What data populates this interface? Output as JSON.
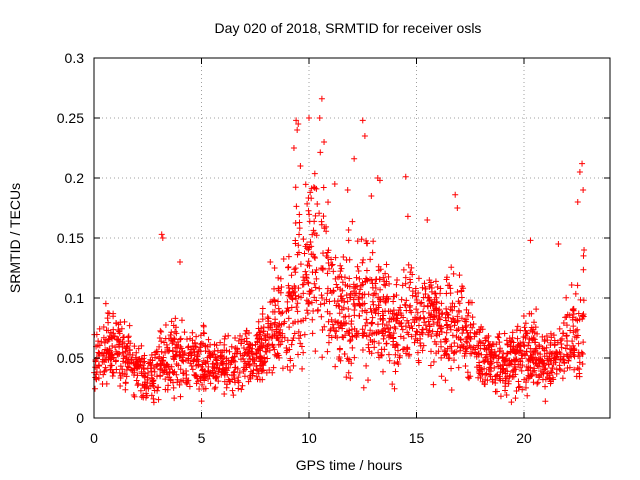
{
  "chart_data": {
    "type": "scatter",
    "title": "Day 020 of 2018, SRMTID for receiver osls",
    "xlabel": "GPS time / hours",
    "ylabel": "SRMTID / TECUs",
    "xlim": [
      0,
      24
    ],
    "ylim": [
      0,
      0.3
    ],
    "x_ticks": [
      "0",
      "5",
      "10",
      "15",
      "20"
    ],
    "y_ticks": [
      "0",
      "0.05",
      "0.1",
      "0.15",
      "0.2",
      "0.25",
      "0.3"
    ],
    "grid": true,
    "marker": "plus",
    "color": "#ff0000",
    "x_extent_hours": [
      0,
      22.8
    ],
    "envelope": [
      [
        0.0,
        0.05,
        0.022
      ],
      [
        0.5,
        0.058,
        0.022
      ],
      [
        1.0,
        0.06,
        0.022
      ],
      [
        1.5,
        0.052,
        0.02
      ],
      [
        2.0,
        0.04,
        0.015
      ],
      [
        2.5,
        0.035,
        0.012
      ],
      [
        3.0,
        0.045,
        0.02
      ],
      [
        3.5,
        0.05,
        0.02
      ],
      [
        4.0,
        0.05,
        0.022
      ],
      [
        4.5,
        0.048,
        0.018
      ],
      [
        5.0,
        0.047,
        0.02
      ],
      [
        5.5,
        0.045,
        0.018
      ],
      [
        6.0,
        0.045,
        0.015
      ],
      [
        6.5,
        0.045,
        0.015
      ],
      [
        7.0,
        0.05,
        0.015
      ],
      [
        7.5,
        0.052,
        0.015
      ],
      [
        8.0,
        0.06,
        0.02
      ],
      [
        8.5,
        0.075,
        0.028
      ],
      [
        9.0,
        0.085,
        0.035
      ],
      [
        9.5,
        0.11,
        0.05
      ],
      [
        10.0,
        0.13,
        0.055
      ],
      [
        10.5,
        0.13,
        0.055
      ],
      [
        11.0,
        0.1,
        0.04
      ],
      [
        11.5,
        0.085,
        0.035
      ],
      [
        12.0,
        0.09,
        0.04
      ],
      [
        12.5,
        0.1,
        0.045
      ],
      [
        13.0,
        0.1,
        0.04
      ],
      [
        13.5,
        0.085,
        0.03
      ],
      [
        14.0,
        0.07,
        0.025
      ],
      [
        14.5,
        0.08,
        0.03
      ],
      [
        15.0,
        0.08,
        0.03
      ],
      [
        15.5,
        0.085,
        0.03
      ],
      [
        16.0,
        0.08,
        0.03
      ],
      [
        16.5,
        0.075,
        0.03
      ],
      [
        17.0,
        0.08,
        0.03
      ],
      [
        17.5,
        0.065,
        0.025
      ],
      [
        18.0,
        0.055,
        0.02
      ],
      [
        18.5,
        0.05,
        0.018
      ],
      [
        19.0,
        0.048,
        0.02
      ],
      [
        19.5,
        0.05,
        0.02
      ],
      [
        20.0,
        0.05,
        0.022
      ],
      [
        20.5,
        0.055,
        0.022
      ],
      [
        21.0,
        0.045,
        0.018
      ],
      [
        21.5,
        0.055,
        0.02
      ],
      [
        22.0,
        0.06,
        0.025
      ],
      [
        22.5,
        0.07,
        0.03
      ],
      [
        22.8,
        0.08,
        0.035
      ]
    ],
    "highlights": [
      [
        3.15,
        0.153
      ],
      [
        3.2,
        0.15
      ],
      [
        4.0,
        0.13
      ],
      [
        9.4,
        0.248
      ],
      [
        9.5,
        0.245
      ],
      [
        9.45,
        0.24
      ],
      [
        9.3,
        0.225
      ],
      [
        9.6,
        0.21
      ],
      [
        10.0,
        0.25
      ],
      [
        10.6,
        0.266
      ],
      [
        10.5,
        0.25
      ],
      [
        10.7,
        0.23
      ],
      [
        12.5,
        0.248
      ],
      [
        12.6,
        0.235
      ],
      [
        12.1,
        0.216
      ],
      [
        13.2,
        0.2
      ],
      [
        13.3,
        0.198
      ],
      [
        14.5,
        0.201
      ],
      [
        16.8,
        0.186
      ],
      [
        16.9,
        0.175
      ],
      [
        22.7,
        0.212
      ],
      [
        22.6,
        0.205
      ],
      [
        22.75,
        0.19
      ],
      [
        22.5,
        0.18
      ],
      [
        20.3,
        0.148
      ],
      [
        21.6,
        0.145
      ],
      [
        8.2,
        0.13
      ],
      [
        8.4,
        0.125
      ],
      [
        11.2,
        0.195
      ],
      [
        11.8,
        0.19
      ],
      [
        12.9,
        0.185
      ],
      [
        15.5,
        0.165
      ],
      [
        14.6,
        0.168
      ]
    ]
  }
}
